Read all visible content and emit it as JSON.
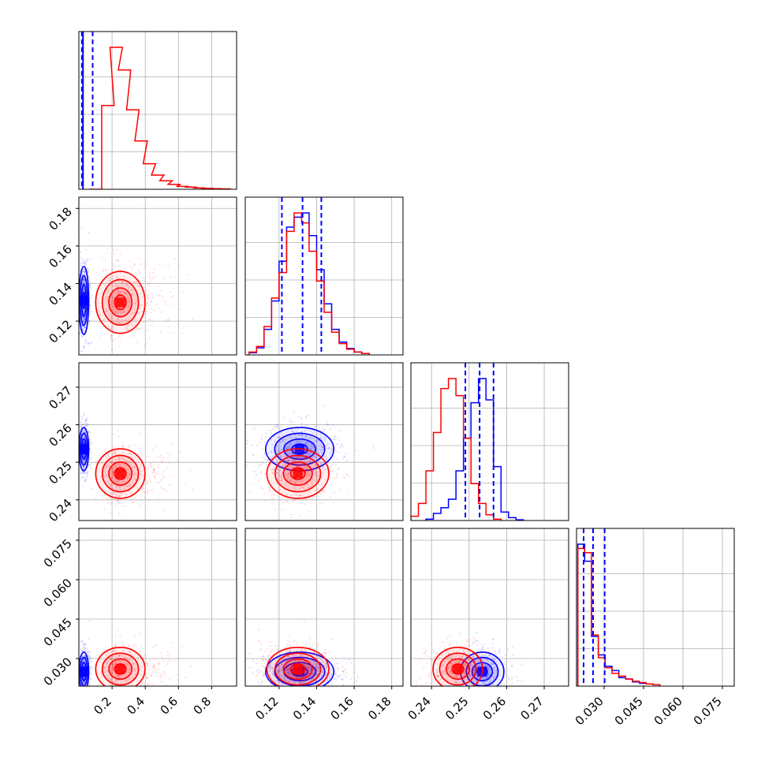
{
  "chart_data": {
    "type": "scatter",
    "subtype": "corner-plot",
    "grid": true,
    "colors": {
      "series_a": "#0000ff",
      "series_b": "#ff0000"
    },
    "variables": [
      {
        "range": [
          0.0,
          0.95
        ],
        "ticks": [
          0.2,
          0.4,
          0.6,
          0.8
        ],
        "tick_labels": [
          "0.2",
          "0.4",
          "0.6",
          "0.8"
        ]
      },
      {
        "range": [
          0.102,
          0.186
        ],
        "ticks": [
          0.12,
          0.14,
          0.16,
          0.18
        ],
        "tick_labels": [
          "0.12",
          "0.14",
          "0.16",
          "0.18"
        ]
      },
      {
        "range": [
          0.2345,
          0.2765
        ],
        "ticks": [
          0.24,
          0.25,
          0.26,
          0.27
        ],
        "tick_labels": [
          "0.24",
          "0.25",
          "0.26",
          "0.27"
        ]
      },
      {
        "range": [
          0.0195,
          0.0795
        ],
        "ticks": [
          0.03,
          0.045,
          0.06,
          0.075
        ],
        "tick_labels": [
          "0.030",
          "0.045",
          "0.060",
          "0.075"
        ]
      }
    ],
    "series": [
      {
        "color": "#0000ff",
        "means": [
          0.03,
          0.131,
          0.2535,
          0.025
        ],
        "sds": [
          0.018,
          0.011,
          0.0035,
          0.0045
        ],
        "quantile_lines": [
          [
            0.018,
            0.025,
            0.083
          ],
          [
            0.1215,
            0.1325,
            0.1425
          ],
          [
            0.249,
            0.2528,
            0.2565
          ],
          [
            0.0222,
            0.0258,
            0.0302
          ]
        ],
        "contours": [
          [
            [
              0.03,
              0.128
            ],
            [
              0.03,
              0.13
            ],
            [
              0.03,
              0.132
            ],
            [
              0.03,
              0.134
            ]
          ],
          [
            [
              0.03,
              0.2535
            ],
            [
              0.03,
              0.2535
            ],
            [
              0.03,
              0.2535
            ],
            [
              0.03,
              0.2535
            ]
          ],
          [
            [
              0.132,
              0.2545
            ],
            [
              0.132,
              0.2545
            ],
            [
              0.132,
              0.2545
            ],
            [
              0.132,
              0.2545
            ]
          ],
          [
            [
              0.03,
              0.024
            ],
            [
              0.03,
              0.024
            ],
            [
              0.03,
              0.024
            ],
            [
              0.03,
              0.024
            ]
          ],
          [
            [
              0.133,
              0.025
            ],
            [
              0.133,
              0.025
            ],
            [
              0.133,
              0.025
            ],
            [
              0.133,
              0.025
            ]
          ],
          [
            [
              0.254,
              0.0245
            ],
            [
              0.254,
              0.0245
            ],
            [
              0.254,
              0.0245
            ],
            [
              0.254,
              0.0245
            ]
          ]
        ],
        "hist": [
          [
            {
              "x": 0.0,
              "y": 0.3
            }
          ],
          [
            {
              "x": 0.106,
              "y": 0.015
            },
            {
              "x": 0.11,
              "y": 0.05
            },
            {
              "x": 0.114,
              "y": 0.18
            },
            {
              "x": 0.118,
              "y": 0.38
            },
            {
              "x": 0.122,
              "y": 0.66
            },
            {
              "x": 0.126,
              "y": 0.9
            },
            {
              "x": 0.13,
              "y": 0.97
            },
            {
              "x": 0.134,
              "y": 1.0
            },
            {
              "x": 0.138,
              "y": 0.84
            },
            {
              "x": 0.142,
              "y": 0.6
            },
            {
              "x": 0.146,
              "y": 0.36
            },
            {
              "x": 0.15,
              "y": 0.18
            },
            {
              "x": 0.154,
              "y": 0.09
            },
            {
              "x": 0.158,
              "y": 0.045
            },
            {
              "x": 0.162,
              "y": 0.02
            },
            {
              "x": 0.166,
              "y": 0.01
            }
          ],
          [
            {
              "x": 0.2395,
              "y": 0.01
            },
            {
              "x": 0.2415,
              "y": 0.05
            },
            {
              "x": 0.2435,
              "y": 0.09
            },
            {
              "x": 0.2455,
              "y": 0.15
            },
            {
              "x": 0.2475,
              "y": 0.35
            },
            {
              "x": 0.2495,
              "y": 0.58
            },
            {
              "x": 0.2515,
              "y": 0.83
            },
            {
              "x": 0.2535,
              "y": 1.0
            },
            {
              "x": 0.2555,
              "y": 0.85
            },
            {
              "x": 0.2575,
              "y": 0.38
            },
            {
              "x": 0.2595,
              "y": 0.06
            },
            {
              "x": 0.2615,
              "y": 0.02
            },
            {
              "x": 0.2635,
              "y": 0.005
            }
          ],
          [
            {
              "x": 0.0213,
              "y": 1.0
            },
            {
              "x": 0.0239,
              "y": 0.88
            },
            {
              "x": 0.0265,
              "y": 0.35
            },
            {
              "x": 0.0291,
              "y": 0.22
            },
            {
              "x": 0.0317,
              "y": 0.14
            },
            {
              "x": 0.0343,
              "y": 0.11
            },
            {
              "x": 0.0369,
              "y": 0.06
            },
            {
              "x": 0.0395,
              "y": 0.05
            },
            {
              "x": 0.0421,
              "y": 0.03
            },
            {
              "x": 0.0447,
              "y": 0.02
            },
            {
              "x": 0.0473,
              "y": 0.015
            },
            {
              "x": 0.0499,
              "y": 0.01
            }
          ]
        ]
      },
      {
        "color": "#ff0000",
        "means": [
          0.25,
          0.13,
          0.247,
          0.026
        ],
        "sds": [
          0.09,
          0.01,
          0.004,
          0.005
        ],
        "quantile_lines": [],
        "contours": [
          [
            [
              0.25,
              0.13
            ],
            [
              0.25,
              0.13
            ],
            [
              0.25,
              0.13
            ],
            [
              0.25,
              0.13
            ]
          ],
          [
            [
              0.25,
              0.247
            ],
            [
              0.25,
              0.247
            ],
            [
              0.25,
              0.247
            ],
            [
              0.25,
              0.247
            ]
          ],
          [
            [
              0.13,
              0.247
            ],
            [
              0.13,
              0.247
            ],
            [
              0.13,
              0.247
            ],
            [
              0.13,
              0.247
            ]
          ],
          [
            [
              0.25,
              0.025
            ],
            [
              0.25,
              0.025
            ],
            [
              0.25,
              0.025
            ],
            [
              0.25,
              0.025
            ]
          ],
          [
            [
              0.131,
              0.026
            ],
            [
              0.131,
              0.026
            ],
            [
              0.131,
              0.026
            ],
            [
              0.131,
              0.026
            ]
          ],
          [
            [
              0.247,
              0.025
            ],
            [
              0.247,
              0.025
            ],
            [
              0.247,
              0.025
            ],
            [
              0.247,
              0.025
            ]
          ]
        ],
        "hist": [
          [
            {
              "x": 0.1,
              "y": 0.0
            },
            {
              "x": 0.175,
              "y": 0.59
            },
            {
              "x": 0.225,
              "y": 1.0
            },
            {
              "x": 0.275,
              "y": 0.84
            },
            {
              "x": 0.325,
              "y": 0.56
            },
            {
              "x": 0.375,
              "y": 0.34
            },
            {
              "x": 0.425,
              "y": 0.18
            },
            {
              "x": 0.475,
              "y": 0.1
            },
            {
              "x": 0.525,
              "y": 0.06
            },
            {
              "x": 0.575,
              "y": 0.035
            },
            {
              "x": 0.625,
              "y": 0.02
            },
            {
              "x": 0.675,
              "y": 0.015
            },
            {
              "x": 0.725,
              "y": 0.01
            },
            {
              "x": 0.775,
              "y": 0.006
            },
            {
              "x": 0.825,
              "y": 0.004
            },
            {
              "x": 0.875,
              "y": 0.003
            }
          ],
          [
            {
              "x": 0.106,
              "y": 0.02
            },
            {
              "x": 0.11,
              "y": 0.06
            },
            {
              "x": 0.114,
              "y": 0.2
            },
            {
              "x": 0.118,
              "y": 0.4
            },
            {
              "x": 0.122,
              "y": 0.58
            },
            {
              "x": 0.126,
              "y": 0.87
            },
            {
              "x": 0.13,
              "y": 1.0
            },
            {
              "x": 0.134,
              "y": 0.93
            },
            {
              "x": 0.138,
              "y": 0.73
            },
            {
              "x": 0.142,
              "y": 0.52
            },
            {
              "x": 0.146,
              "y": 0.3
            },
            {
              "x": 0.15,
              "y": 0.16
            },
            {
              "x": 0.154,
              "y": 0.08
            },
            {
              "x": 0.158,
              "y": 0.04
            },
            {
              "x": 0.162,
              "y": 0.02
            },
            {
              "x": 0.166,
              "y": 0.01
            }
          ],
          [
            {
              "x": 0.2355,
              "y": 0.03
            },
            {
              "x": 0.2375,
              "y": 0.12
            },
            {
              "x": 0.2395,
              "y": 0.35
            },
            {
              "x": 0.2415,
              "y": 0.62
            },
            {
              "x": 0.2435,
              "y": 0.93
            },
            {
              "x": 0.2455,
              "y": 1.0
            },
            {
              "x": 0.2475,
              "y": 0.88
            },
            {
              "x": 0.2495,
              "y": 0.58
            },
            {
              "x": 0.2515,
              "y": 0.26
            },
            {
              "x": 0.2535,
              "y": 0.12
            },
            {
              "x": 0.2555,
              "y": 0.04
            },
            {
              "x": 0.2575,
              "y": 0.01
            }
          ],
          [
            {
              "x": 0.0213,
              "y": 0.97
            },
            {
              "x": 0.0239,
              "y": 0.94
            },
            {
              "x": 0.0265,
              "y": 0.36
            },
            {
              "x": 0.0291,
              "y": 0.2
            },
            {
              "x": 0.0317,
              "y": 0.13
            },
            {
              "x": 0.0343,
              "y": 0.09
            },
            {
              "x": 0.0369,
              "y": 0.07
            },
            {
              "x": 0.0395,
              "y": 0.05
            },
            {
              "x": 0.0421,
              "y": 0.035
            },
            {
              "x": 0.0447,
              "y": 0.025
            },
            {
              "x": 0.0473,
              "y": 0.015
            },
            {
              "x": 0.0499,
              "y": 0.01
            }
          ]
        ]
      }
    ]
  }
}
